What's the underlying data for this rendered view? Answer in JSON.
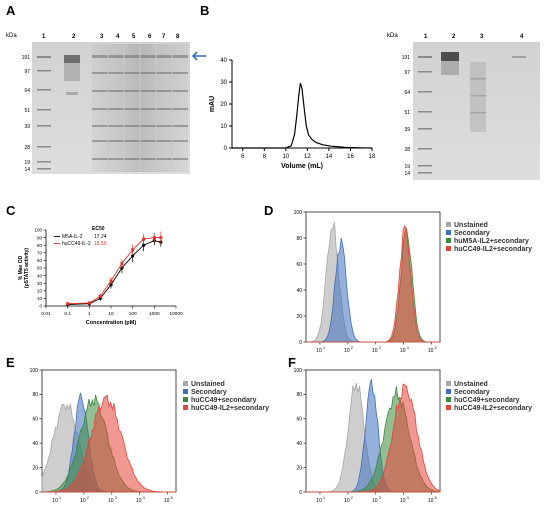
{
  "panels": {
    "a": {
      "letter": "A",
      "kda_label": "kDa",
      "lanes": [
        "1",
        "2",
        "3",
        "4",
        "5",
        "6",
        "7",
        "8"
      ],
      "markers": [
        "191",
        "97",
        "64",
        "51",
        "39",
        "28",
        "19",
        "14"
      ]
    },
    "b": {
      "letter": "B",
      "gel_kda_label": "kDa",
      "gel_lanes": [
        "1",
        "2",
        "3",
        "4"
      ],
      "gel_markers": [
        "191",
        "97",
        "64",
        "51",
        "39",
        "28",
        "19",
        "14"
      ]
    },
    "c": {
      "letter": "C"
    },
    "d": {
      "letter": "D"
    },
    "e": {
      "letter": "E"
    },
    "f": {
      "letter": "F"
    }
  },
  "chart_data": [
    {
      "panel": "B",
      "type": "line",
      "xlabel": "Volume (mL)",
      "ylabel": "mAU",
      "xlim": [
        5,
        18
      ],
      "ylim": [
        0,
        40
      ],
      "xticks": [
        6,
        8,
        10,
        12,
        14,
        16,
        18
      ],
      "yticks": [
        0,
        10,
        20,
        30,
        40
      ],
      "x": [
        5.0,
        10.0,
        10.5,
        10.8,
        11.0,
        11.2,
        11.35,
        11.5,
        11.7,
        11.9,
        12.1,
        12.4,
        12.8,
        13.4,
        14.2,
        15.5,
        17.0,
        18.0
      ],
      "y": [
        0,
        0,
        1,
        6,
        14,
        24,
        29.5,
        27,
        18,
        10,
        6,
        4,
        2.5,
        1.5,
        0.8,
        0.3,
        0.1,
        0
      ]
    },
    {
      "panel": "C",
      "type": "line",
      "ylabel": "% Max OD\n(pSTAT5 activity)",
      "ylabel_lines": [
        "% Max OD",
        "(pSTAT5 activity)"
      ],
      "xlabel": "Concentration (pM)",
      "xscale": "log",
      "xticks": [
        "0.01",
        "0.1",
        "1",
        "10",
        "100",
        "1000",
        "10000"
      ],
      "yticks": [
        0,
        10,
        20,
        30,
        40,
        50,
        60,
        70,
        80,
        90,
        100
      ],
      "ylim": [
        0,
        100
      ],
      "legend_header": "EC50",
      "series": [
        {
          "name": "M5A-IL-2",
          "ec50": "17.24",
          "color": "#000000",
          "x": [
            0.1,
            1,
            3.2,
            10,
            32,
            100,
            320,
            1000,
            2000
          ],
          "y": [
            2,
            3,
            10,
            28,
            50,
            66,
            80,
            86,
            84
          ],
          "err": [
            1,
            1,
            3,
            5,
            7,
            8,
            8,
            6,
            6
          ]
        },
        {
          "name": "huCC49-IL-2",
          "ec50": "18.59",
          "color": "#e8332a",
          "x": [
            0.1,
            1,
            3.2,
            10,
            32,
            100,
            320,
            1000,
            2000
          ],
          "y": [
            3,
            4,
            13,
            33,
            56,
            74,
            88,
            90,
            90
          ],
          "err": [
            1,
            1,
            3,
            5,
            6,
            7,
            7,
            6,
            8
          ]
        }
      ]
    },
    {
      "panel": "D",
      "type": "area",
      "yticks": [
        0,
        20,
        40,
        60,
        80,
        100
      ],
      "xticks_exp": [
        "1",
        "2",
        "3",
        "4",
        "5"
      ],
      "legend": [
        "Unstained",
        "Secondary",
        "huM5A-IL2+secondary",
        "huCC49-IL2+secondary"
      ],
      "colors": [
        "#a6a6a6",
        "#3f6fbf",
        "#3a8a3a",
        "#e8433a"
      ]
    },
    {
      "panel": "E",
      "type": "area",
      "yticks": [
        0,
        20,
        40,
        60,
        80,
        100
      ],
      "xticks_exp": [
        "1",
        "2",
        "3",
        "4",
        "5"
      ],
      "legend": [
        "Unstained",
        "Secondary",
        "huCC49+secondary",
        "huCC49-IL2+secondary"
      ],
      "colors": [
        "#a6a6a6",
        "#3f6fbf",
        "#3a8a3a",
        "#e8433a"
      ]
    },
    {
      "panel": "F",
      "type": "area",
      "yticks": [
        0,
        20,
        40,
        60,
        80,
        100
      ],
      "xticks_exp": [
        "1",
        "2",
        "3",
        "4",
        "5"
      ],
      "legend": [
        "Unstained",
        "Secondary",
        "huCC49+secondary",
        "huCC49-IL2+secondary"
      ],
      "colors": [
        "#a6a6a6",
        "#3f6fbf",
        "#3a8a3a",
        "#e8433a"
      ]
    }
  ]
}
